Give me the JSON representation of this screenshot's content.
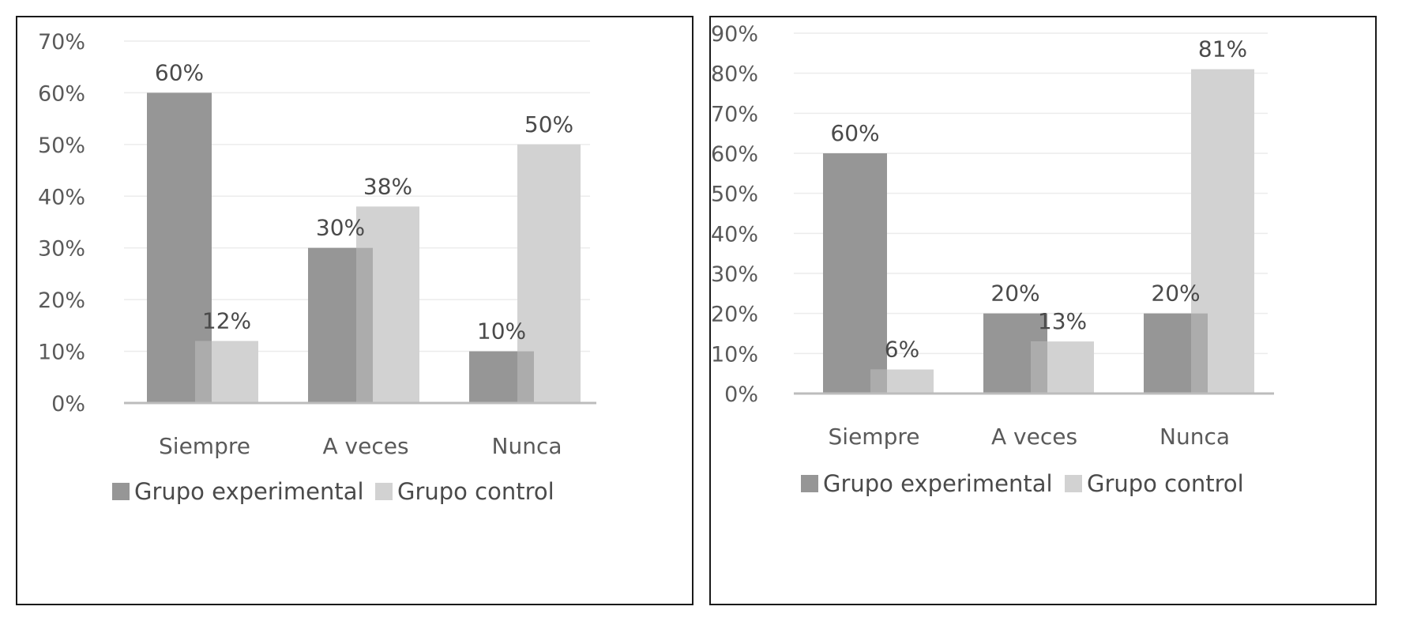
{
  "colors": {
    "experimental": "#969696",
    "control": "#d2d2d2",
    "overlap": "#acacac",
    "gridline": "#ececec",
    "axis": "#bcbcbc"
  },
  "chart_data": [
    {
      "type": "bar",
      "categories": [
        "Siempre",
        "A veces",
        "Nunca"
      ],
      "series": [
        {
          "name": "Grupo experimental",
          "values": [
            60,
            30,
            10
          ],
          "labels": [
            "60%",
            "30%",
            "10%"
          ]
        },
        {
          "name": "Grupo control",
          "values": [
            12,
            38,
            50
          ],
          "labels": [
            "12%",
            "38%",
            "50%"
          ]
        }
      ],
      "ylim": [
        0,
        70
      ],
      "yticks": [
        "0%",
        "10%",
        "20%",
        "30%",
        "40%",
        "50%",
        "60%",
        "70%"
      ],
      "title": "",
      "xlabel": "",
      "ylabel": "",
      "legend": "bottom",
      "grid": true
    },
    {
      "type": "bar",
      "categories": [
        "Siempre",
        "A veces",
        "Nunca"
      ],
      "series": [
        {
          "name": "Grupo experimental",
          "values": [
            60,
            20,
            20
          ],
          "labels": [
            "60%",
            "20%",
            "20%"
          ]
        },
        {
          "name": "Grupo control",
          "values": [
            6,
            13,
            81
          ],
          "labels": [
            "6%",
            "13%",
            "81%"
          ]
        }
      ],
      "ylim": [
        0,
        90
      ],
      "yticks": [
        "0%",
        "10%",
        "20%",
        "30%",
        "40%",
        "50%",
        "60%",
        "70%",
        "80%",
        "90%"
      ],
      "title": "",
      "xlabel": "",
      "ylabel": "",
      "legend": "bottom",
      "grid": true
    }
  ]
}
